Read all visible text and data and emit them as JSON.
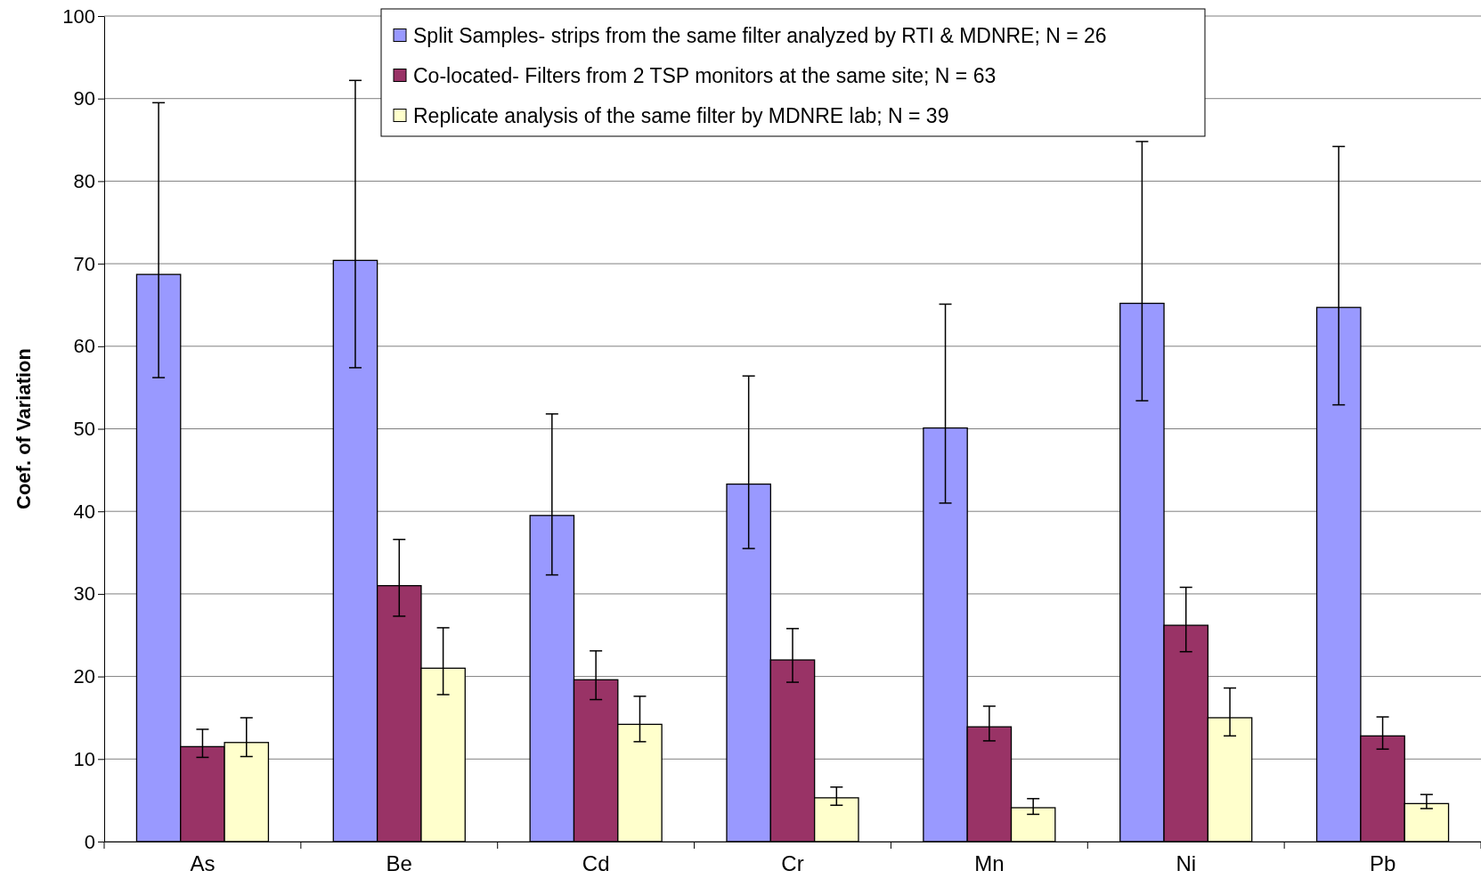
{
  "chart_data": {
    "type": "bar",
    "ylabel": "Coef. of Variation",
    "categories": [
      "As",
      "Be",
      "Cd",
      "Cr",
      "Mn",
      "Ni",
      "Pb"
    ],
    "series": [
      {
        "name": "Split Samples- strips from the same filter analyzed by RTI & MDNRE; N = 26",
        "color": "#9999ff",
        "values": [
          68.7,
          70.4,
          39.5,
          43.3,
          50.1,
          65.2,
          64.7
        ],
        "errors": [
          [
            56.2,
            89.5
          ],
          [
            57.4,
            92.2
          ],
          [
            32.3,
            51.8
          ],
          [
            35.5,
            56.4
          ],
          [
            41.0,
            65.1
          ],
          [
            53.4,
            84.8
          ],
          [
            52.9,
            84.2
          ]
        ]
      },
      {
        "name": "Co-located- Filters from 2 TSP monitors at the same site; N = 63",
        "color": "#993366",
        "values": [
          11.5,
          31.0,
          19.6,
          22.0,
          13.9,
          26.2,
          12.8
        ],
        "errors": [
          [
            10.2,
            13.6
          ],
          [
            27.3,
            36.6
          ],
          [
            17.2,
            23.1
          ],
          [
            19.3,
            25.8
          ],
          [
            12.2,
            16.4
          ],
          [
            23.0,
            30.8
          ],
          [
            11.2,
            15.1
          ]
        ]
      },
      {
        "name": "Replicate analysis of the same filter by MDNRE lab; N = 39",
        "color": "#ffffcc",
        "values": [
          12.0,
          21.0,
          14.2,
          5.3,
          4.1,
          15.0,
          4.6
        ],
        "errors": [
          [
            10.3,
            15.0
          ],
          [
            17.8,
            25.9
          ],
          [
            12.1,
            17.6
          ],
          [
            4.4,
            6.6
          ],
          [
            3.3,
            5.2
          ],
          [
            12.8,
            18.6
          ],
          [
            4.0,
            5.7
          ]
        ]
      }
    ],
    "ylim": [
      0,
      100
    ],
    "yticks": [
      0,
      10,
      20,
      30,
      40,
      50,
      60,
      70,
      80,
      90,
      100
    ],
    "grid": "y",
    "legend": "top"
  }
}
